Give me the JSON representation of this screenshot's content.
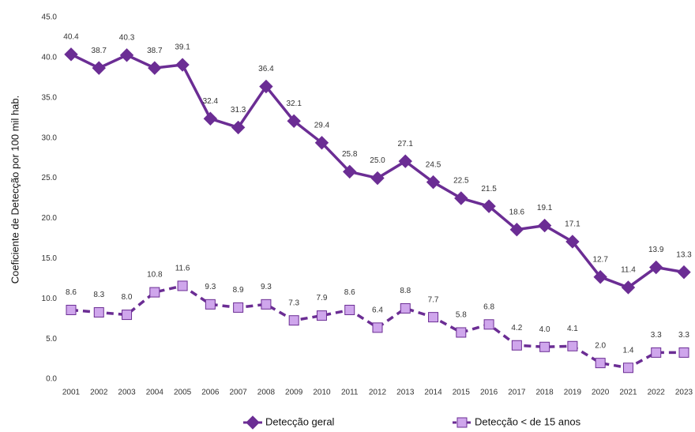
{
  "chart_data": {
    "type": "line",
    "y_label": "Coeficiente de Detecção por 100 mil hab.",
    "categories": [
      "2001",
      "2002",
      "2003",
      "2004",
      "2005",
      "2006",
      "2007",
      "2008",
      "2009",
      "2010",
      "2011",
      "2012",
      "2013",
      "2014",
      "2015",
      "2016",
      "2017",
      "2018",
      "2019",
      "2020",
      "2021",
      "2022",
      "2023"
    ],
    "series": [
      {
        "name": "Detecção geral",
        "color": "#6b2d94",
        "marker": "diamond",
        "marker_color": "#6b2d94",
        "line_style": "solid",
        "values": [
          40.4,
          38.7,
          40.3,
          38.7,
          39.1,
          32.4,
          31.3,
          36.4,
          32.1,
          29.4,
          25.8,
          25.0,
          27.1,
          24.5,
          22.5,
          21.5,
          18.6,
          19.1,
          17.1,
          12.7,
          11.4,
          13.9,
          13.3
        ],
        "value_labels": [
          "40.4",
          "38.7",
          "40.3",
          "38.7",
          "39.1",
          "32.4",
          "31.3",
          "36.4",
          "32.1",
          "29.4",
          "25.8",
          "25.0",
          "27.1",
          "24.5",
          "22.5",
          "21.5",
          "18.6",
          "19.1",
          "17.1",
          "12.7",
          "11.4",
          "13.9",
          "13.3"
        ]
      },
      {
        "name": "Detecção < de 15 anos",
        "color": "#6b2d94",
        "marker": "square",
        "marker_color": "#cfa6ec",
        "line_style": "dashed",
        "values": [
          8.6,
          8.3,
          8.0,
          10.8,
          11.6,
          9.3,
          8.9,
          9.3,
          7.3,
          7.9,
          8.6,
          6.4,
          8.8,
          7.7,
          5.8,
          6.8,
          4.2,
          4.0,
          4.1,
          2.0,
          1.4,
          3.3,
          3.3
        ],
        "value_labels": [
          "8.6",
          "8.3",
          "8.0",
          "10.8",
          "11.6",
          "9.3",
          "8.9",
          "9.3",
          "7.3",
          "7.9",
          "8.6",
          "6.4",
          "8.8",
          "7.7",
          "5.8",
          "6.8",
          "4.2",
          "4.0",
          "4.1",
          "2.0",
          "1.4",
          "3.3",
          "3.3"
        ]
      }
    ],
    "ylim": [
      0,
      45
    ],
    "yticks": [
      {
        "value": 0,
        "label": "0.0"
      },
      {
        "value": 5,
        "label": "5.0"
      },
      {
        "value": 10,
        "label": "10.0"
      },
      {
        "value": 15,
        "label": "15.0"
      },
      {
        "value": 20,
        "label": "20.0"
      },
      {
        "value": 25,
        "label": "25.0"
      },
      {
        "value": 30,
        "label": "30.0"
      },
      {
        "value": 35,
        "label": "35.0"
      },
      {
        "value": 40,
        "label": "40.0"
      },
      {
        "value": 45,
        "label": "45.0"
      }
    ],
    "grid": false,
    "legend": "bottom"
  }
}
